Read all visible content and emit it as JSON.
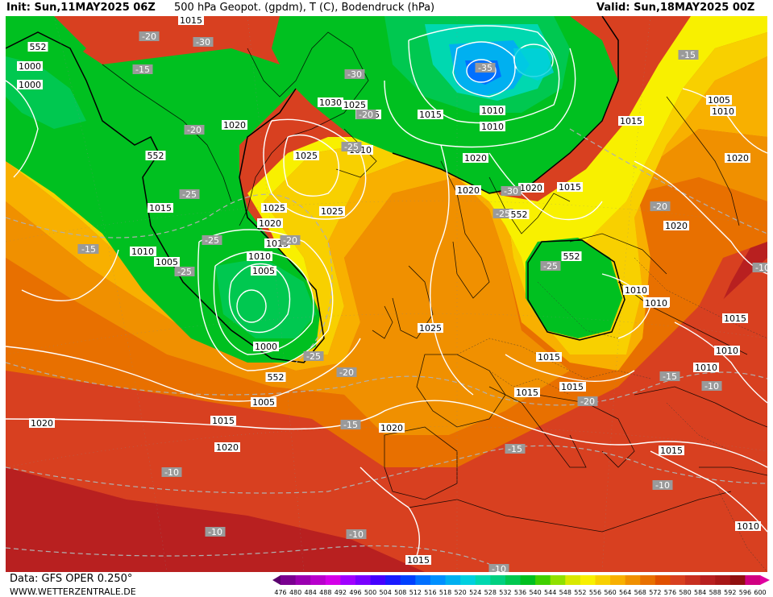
{
  "header": {
    "init": "Init: Sun,11MAY2025 06Z",
    "title": "500 hPa Geopot. (gpdm), T (C), Bodendruck (hPa)",
    "valid": "Valid: Sun,18MAY2025 00Z"
  },
  "footer": {
    "data_source": "Data: GFS OPER 0.250°",
    "website": "WWW.WETTERZENTRALE.DE"
  },
  "colorbar": {
    "values": [
      "476",
      "480",
      "484",
      "488",
      "492",
      "496",
      "500",
      "504",
      "508",
      "512",
      "516",
      "518",
      "520",
      "524",
      "528",
      "532",
      "536",
      "540",
      "544",
      "548",
      "552",
      "556",
      "560",
      "564",
      "568",
      "572",
      "576",
      "580",
      "584",
      "588",
      "592",
      "596",
      "600"
    ],
    "colors": [
      "#5a006e",
      "#7a0090",
      "#9a00b0",
      "#b800cc",
      "#d400e8",
      "#a000ff",
      "#7800ff",
      "#4400ff",
      "#1a1aff",
      "#0040ff",
      "#0070ff",
      "#0090ff",
      "#00b0f0",
      "#00d0e0",
      "#00d8b0",
      "#00d080",
      "#00c850",
      "#00c020",
      "#40d000",
      "#90e000",
      "#d8e800",
      "#f8f000",
      "#f8d000",
      "#f8b000",
      "#f09000",
      "#e87000",
      "#e05000",
      "#d84020",
      "#c83020",
      "#b82020",
      "#a81818",
      "#901010",
      "#d00080",
      "#e000a0"
    ]
  },
  "map_labels": {
    "isobars": [
      {
        "t": "1015"
      },
      {
        "t": "1000"
      },
      {
        "t": "1030"
      },
      {
        "t": "1025"
      },
      {
        "t": "1015"
      },
      {
        "t": "1015"
      },
      {
        "t": "1010"
      },
      {
        "t": "1020"
      },
      {
        "t": "1025"
      },
      {
        "t": "1010"
      },
      {
        "t": "1020"
      },
      {
        "t": "1015"
      },
      {
        "t": "1025"
      },
      {
        "t": "1020"
      },
      {
        "t": "1015"
      },
      {
        "t": "1005"
      },
      {
        "t": "1010"
      },
      {
        "t": "1015"
      },
      {
        "t": "1010"
      },
      {
        "t": "1000"
      },
      {
        "t": "1005"
      },
      {
        "t": "1010"
      },
      {
        "t": "1005"
      },
      {
        "t": "1000"
      },
      {
        "t": "1025"
      },
      {
        "t": "1010"
      },
      {
        "t": "1015"
      },
      {
        "t": "1020"
      },
      {
        "t": "1020"
      },
      {
        "t": "1015"
      },
      {
        "t": "1020"
      },
      {
        "t": "1025"
      },
      {
        "t": "1020"
      },
      {
        "t": "1015"
      },
      {
        "t": "1005"
      },
      {
        "t": "1010"
      },
      {
        "t": "1020"
      },
      {
        "t": "1020"
      },
      {
        "t": "1010"
      },
      {
        "t": "1010"
      },
      {
        "t": "1020"
      },
      {
        "t": "1015"
      },
      {
        "t": "1010"
      },
      {
        "t": "1010"
      },
      {
        "t": "1015"
      },
      {
        "t": "1015"
      },
      {
        "t": "1015"
      },
      {
        "t": "1010"
      },
      {
        "t": "1015"
      },
      {
        "t": "1010"
      },
      {
        "t": "1015"
      }
    ],
    "temperatures": [
      {
        "t": "-20"
      },
      {
        "t": "-30"
      },
      {
        "t": "-15"
      },
      {
        "t": "-20"
      },
      {
        "t": "-25"
      },
      {
        "t": "-25"
      },
      {
        "t": "-25"
      },
      {
        "t": "-15"
      },
      {
        "t": "-20"
      },
      {
        "t": "-25"
      },
      {
        "t": "-20"
      },
      {
        "t": "-30"
      },
      {
        "t": "-35"
      },
      {
        "t": "-25"
      },
      {
        "t": "-30"
      },
      {
        "t": "-25"
      },
      {
        "t": "-15"
      },
      {
        "t": "-20"
      },
      {
        "t": "-25"
      },
      {
        "t": "-10"
      },
      {
        "t": "-15"
      },
      {
        "t": "-10"
      },
      {
        "t": "-20"
      },
      {
        "t": "-15"
      },
      {
        "t": "-15"
      },
      {
        "t": "-10"
      },
      {
        "t": "-10"
      },
      {
        "t": "-10"
      },
      {
        "t": "-10"
      },
      {
        "t": "-10"
      },
      {
        "t": "-20"
      },
      {
        "t": "-15"
      }
    ],
    "geopotential": [
      {
        "t": "552"
      },
      {
        "t": "552"
      },
      {
        "t": "552"
      },
      {
        "t": "552"
      },
      {
        "t": "552"
      }
    ]
  }
}
